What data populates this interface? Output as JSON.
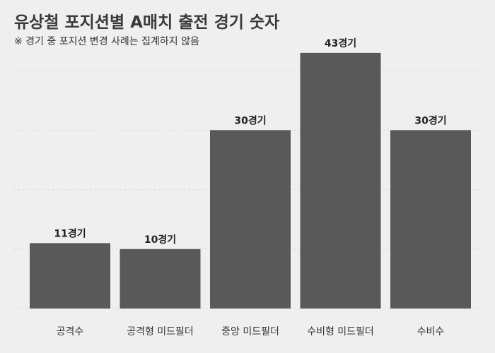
{
  "title": "유상철 포지션별 A매치 출전 경기 숫자",
  "subtitle": "※ 경기 중 포지션 변경 사례는 집계하지 않음",
  "colors": {
    "background": "#efefef",
    "bar": "#595959",
    "grid": "#d7d7d7",
    "text": "#333333"
  },
  "chart_data": {
    "type": "bar",
    "title": "유상철 포지션별 A매치 출전 경기 숫자",
    "subtitle": "※ 경기 중 포지션 변경 사례는 집계하지 않음",
    "categories": [
      "공격수",
      "공격형 미드필더",
      "중앙 미드필더",
      "수비형 미드필더",
      "수비수"
    ],
    "values": [
      11,
      10,
      30,
      43,
      30
    ],
    "data_labels": [
      "11경기",
      "10경기",
      "30경기",
      "43경기",
      "30경기"
    ],
    "xlabel": "",
    "ylabel": "",
    "ylim": [
      0,
      45
    ],
    "y_gridlines": [
      0,
      10,
      20,
      30,
      40
    ],
    "grid": true,
    "legend": "none"
  }
}
